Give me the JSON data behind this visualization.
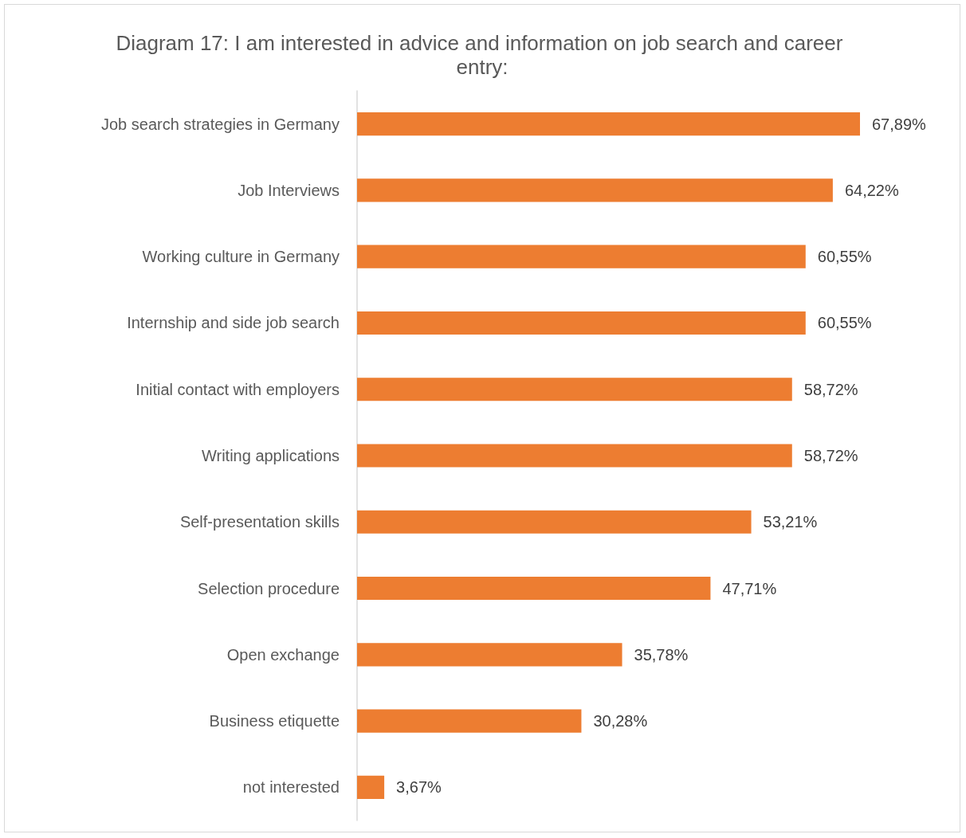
{
  "chart_data": {
    "type": "bar",
    "orientation": "horizontal",
    "title": "Diagram 17: I am interested in advice and information on job search and career entry:",
    "categories": [
      "Job search strategies in Germany",
      "Job Interviews",
      "Working culture in Germany",
      "Internship and side job search",
      "Initial contact with employers",
      "Writing applications",
      "Self-presentation skills",
      "Selection procedure",
      "Open exchange",
      "Business etiquette",
      "not interested"
    ],
    "values": [
      67.89,
      64.22,
      60.55,
      60.55,
      58.72,
      58.72,
      53.21,
      47.71,
      35.78,
      30.28,
      3.67
    ],
    "value_labels": [
      "67,89%",
      "64,22%",
      "60,55%",
      "60,55%",
      "58,72%",
      "58,72%",
      "53,21%",
      "47,71%",
      "35,78%",
      "30,28%",
      "3,67%"
    ],
    "color": "#ed7d31",
    "grid": false
  }
}
